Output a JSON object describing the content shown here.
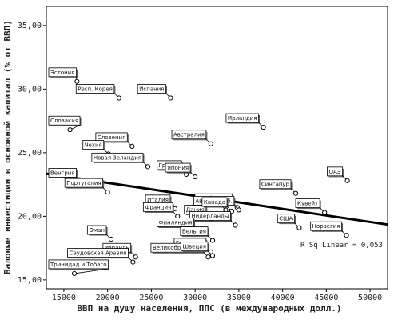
{
  "chart_data": {
    "type": "scatter",
    "xlabel": "ВВП на душу населения, ППС (в международных долл.)",
    "ylabel": "Валовые инвестиции в основной капитал (% от ВВП)",
    "xlim": [
      13000,
      52000
    ],
    "ylim": [
      14.3,
      36.5
    ],
    "x_ticks": [
      15000,
      20000,
      25000,
      30000,
      35000,
      40000,
      45000,
      50000
    ],
    "y_ticks": [
      15.0,
      20.0,
      25.0,
      30.0,
      35.0
    ],
    "x_tick_labels": [
      "15000",
      "20000",
      "25000",
      "30000",
      "35000",
      "40000",
      "45000",
      "50000"
    ],
    "y_tick_labels": [
      "15,00",
      "20,00",
      "25,00",
      "30,00",
      "35,00"
    ],
    "grid": false,
    "points": [
      {
        "label": "Эстония",
        "x": 16500,
        "y": 30.6
      },
      {
        "label": "Респ. Корея",
        "x": 21300,
        "y": 29.3
      },
      {
        "label": "Испания",
        "x": 27200,
        "y": 29.3
      },
      {
        "label": "Словакия",
        "x": 15700,
        "y": 26.8
      },
      {
        "label": "Ирландия",
        "x": 37800,
        "y": 27.0
      },
      {
        "label": "Словения",
        "x": 22800,
        "y": 25.5
      },
      {
        "label": "Австралия",
        "x": 31800,
        "y": 25.7
      },
      {
        "label": "Чехия",
        "x": 20100,
        "y": 24.9
      },
      {
        "label": "Новая Зеландия",
        "x": 24600,
        "y": 23.9
      },
      {
        "label": "Греция",
        "x": 29000,
        "y": 23.3
      },
      {
        "label": "Венгрия",
        "x": 16900,
        "y": 22.7
      },
      {
        "label": "Португалия",
        "x": 20000,
        "y": 21.9
      },
      {
        "label": "Япония",
        "x": 30000,
        "y": 23.1
      },
      {
        "label": "ОАЭ",
        "x": 47400,
        "y": 22.8
      },
      {
        "label": "Сингапур",
        "x": 41500,
        "y": 21.8
      },
      {
        "label": "Швейцария",
        "x": 34800,
        "y": 20.7
      },
      {
        "label": "Люксемб.",
        "x": 35000,
        "y": 20.5
      },
      {
        "label": "Италия",
        "x": 27700,
        "y": 20.6
      },
      {
        "label": "Австрия",
        "x": 33500,
        "y": 20.5
      },
      {
        "label": "Кувейт",
        "x": 44800,
        "y": 20.3
      },
      {
        "label": "Франция",
        "x": 28000,
        "y": 20.0
      },
      {
        "label": "Дания",
        "x": 31800,
        "y": 19.8
      },
      {
        "label": "Канада",
        "x": 34200,
        "y": 20.4
      },
      {
        "label": "США",
        "x": 41900,
        "y": 19.1
      },
      {
        "label": "Нидерланды",
        "x": 34600,
        "y": 19.3
      },
      {
        "label": "Норвегия",
        "x": 47300,
        "y": 18.5
      },
      {
        "label": "Оман",
        "x": 20400,
        "y": 18.2
      },
      {
        "label": "Финляндия",
        "x": 30400,
        "y": 18.8
      },
      {
        "label": "Бельгия",
        "x": 32000,
        "y": 18.1
      },
      {
        "label": "Германия",
        "x": 31800,
        "y": 17.2
      },
      {
        "label": "Израиль",
        "x": 23200,
        "y": 16.8
      },
      {
        "label": "Саудовская Аравия",
        "x": 22900,
        "y": 16.4
      },
      {
        "label": "Великобритания",
        "x": 31500,
        "y": 16.8
      },
      {
        "label": "Швеция",
        "x": 32000,
        "y": 16.9
      },
      {
        "label": "Тринидад и Тобаго",
        "x": 16200,
        "y": 15.5
      }
    ],
    "fit_line": {
      "type": "linear",
      "x": [
        13000,
        52000
      ],
      "y": [
        23.35,
        19.35
      ]
    },
    "fit_label": "R Sq Linear = 0,053"
  }
}
